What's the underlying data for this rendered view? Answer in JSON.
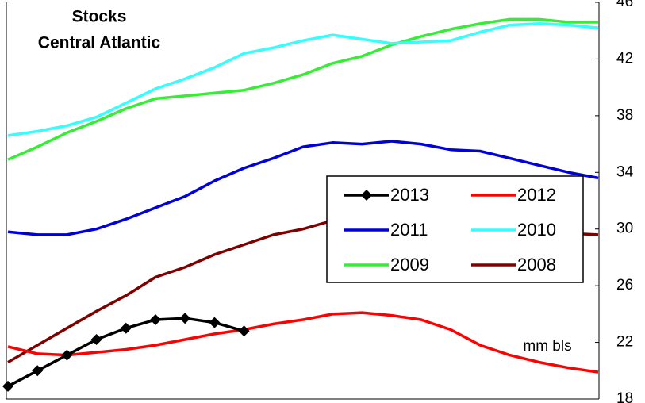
{
  "chart_data": {
    "type": "line",
    "title": "Stocks",
    "subtitle": "Central Atlantic",
    "y_label": "mm bls",
    "categories": [
      null,
      null,
      null,
      null,
      null,
      null,
      null,
      null,
      null,
      null,
      null,
      null,
      null,
      null,
      null,
      null,
      null,
      null,
      null,
      null,
      null
    ],
    "ylim": [
      18,
      46
    ],
    "yticks": [
      18,
      22,
      26,
      30,
      34,
      38,
      42,
      46
    ],
    "y_axis_side": "right",
    "legend": "center-right",
    "series": [
      {
        "name": "2013",
        "color": "#000000",
        "marker": "diamond",
        "values": [
          18.9,
          20.0,
          21.1,
          22.2,
          23.0,
          23.6,
          23.7,
          23.4,
          22.8,
          null,
          null,
          null,
          null,
          null,
          null,
          null,
          null,
          null,
          null,
          null,
          null
        ]
      },
      {
        "name": "2012",
        "color": "#ff0000",
        "values": [
          21.7,
          21.2,
          21.1,
          21.3,
          21.5,
          21.8,
          22.2,
          22.6,
          22.9,
          23.3,
          23.6,
          24.0,
          24.1,
          23.9,
          23.6,
          22.9,
          21.8,
          21.1,
          20.6,
          20.2,
          19.9
        ]
      },
      {
        "name": "2011",
        "color": "#0000dd",
        "values": [
          29.8,
          29.6,
          29.6,
          30.0,
          30.7,
          31.5,
          32.3,
          33.4,
          34.3,
          35.0,
          35.8,
          36.1,
          36.0,
          36.2,
          36.0,
          35.6,
          35.5,
          35.0,
          34.5,
          34.0,
          33.6
        ]
      },
      {
        "name": "2010",
        "color": "#33ffff",
        "values": [
          36.6,
          36.9,
          37.3,
          37.9,
          38.9,
          39.9,
          40.6,
          41.4,
          42.4,
          42.8,
          43.3,
          43.7,
          43.4,
          43.1,
          43.2,
          43.3,
          43.9,
          44.4,
          44.5,
          44.4,
          44.2
        ]
      },
      {
        "name": "2009",
        "color": "#33ee33",
        "values": [
          34.9,
          35.8,
          36.8,
          37.6,
          38.5,
          39.2,
          39.4,
          39.6,
          39.8,
          40.3,
          40.9,
          41.7,
          42.2,
          43.0,
          43.6,
          44.1,
          44.5,
          44.8,
          44.8,
          44.6,
          44.6
        ]
      },
      {
        "name": "2008",
        "color": "#800000",
        "values": [
          20.6,
          21.8,
          23.0,
          24.2,
          25.3,
          26.6,
          27.3,
          28.2,
          28.9,
          29.6,
          30.0,
          30.6,
          31.1,
          31.4,
          31.3,
          31.0,
          30.7,
          30.4,
          30.0,
          29.7,
          29.6
        ]
      }
    ]
  }
}
